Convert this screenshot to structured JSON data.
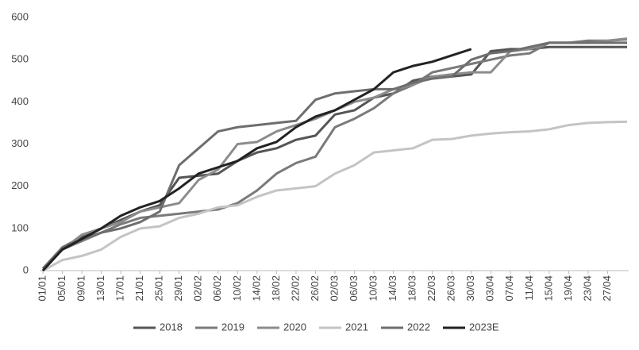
{
  "chart_data": {
    "type": "line",
    "categories": [
      "01/01",
      "05/01",
      "09/01",
      "13/01",
      "17/01",
      "21/01",
      "25/01",
      "29/01",
      "02/02",
      "06/02",
      "10/02",
      "14/02",
      "18/02",
      "22/02",
      "26/02",
      "02/03",
      "06/03",
      "10/03",
      "14/03",
      "18/03",
      "22/03",
      "26/03",
      "30/03",
      "03/04",
      "07/04",
      "11/04",
      "15/04",
      "19/04",
      "23/04",
      "27/04",
      null
    ],
    "ylim": [
      0,
      600
    ],
    "yticks": [
      0,
      100,
      200,
      300,
      400,
      500,
      600
    ],
    "grid": false,
    "legend": "bottom",
    "series": [
      {
        "name": "2018",
        "color": "#555555",
        "values": [
          0,
          55,
          80,
          100,
          120,
          140,
          155,
          220,
          225,
          230,
          260,
          280,
          290,
          310,
          320,
          370,
          380,
          410,
          420,
          450,
          460,
          460,
          465,
          520,
          525,
          525,
          530,
          530,
          530,
          530,
          530
        ]
      },
      {
        "name": "2019",
        "color": "#7a7a7a",
        "values": [
          5,
          50,
          70,
          90,
          110,
          125,
          130,
          135,
          140,
          145,
          160,
          190,
          230,
          255,
          270,
          340,
          360,
          385,
          420,
          440,
          470,
          480,
          490,
          500,
          510,
          515,
          540,
          540,
          545,
          545,
          548
        ]
      },
      {
        "name": "2020",
        "color": "#8c8c8c",
        "values": [
          5,
          50,
          85,
          100,
          115,
          140,
          150,
          160,
          215,
          240,
          300,
          305,
          330,
          345,
          360,
          380,
          400,
          410,
          430,
          440,
          460,
          465,
          470,
          470,
          520,
          525,
          540,
          540,
          540,
          545,
          550
        ]
      },
      {
        "name": "2021",
        "color": "#c4c4c4",
        "values": [
          0,
          25,
          35,
          50,
          80,
          100,
          105,
          125,
          135,
          150,
          155,
          175,
          190,
          195,
          200,
          230,
          250,
          280,
          285,
          290,
          310,
          312,
          320,
          325,
          328,
          330,
          335,
          345,
          350,
          352,
          353
        ]
      },
      {
        "name": "2022",
        "color": "#6e6e6e",
        "values": [
          5,
          55,
          75,
          90,
          100,
          115,
          140,
          250,
          290,
          330,
          340,
          345,
          350,
          355,
          405,
          420,
          425,
          430,
          430,
          445,
          455,
          460,
          500,
          515,
          520,
          530,
          540,
          540,
          540,
          540,
          540
        ]
      },
      {
        "name": "2023E",
        "color": "#222222",
        "values": [
          0,
          50,
          75,
          100,
          130,
          150,
          165,
          195,
          230,
          245,
          260,
          290,
          305,
          340,
          365,
          380,
          405,
          430,
          470,
          485,
          495,
          510,
          525,
          null,
          null,
          null,
          null,
          null,
          null,
          null,
          null
        ]
      }
    ]
  }
}
